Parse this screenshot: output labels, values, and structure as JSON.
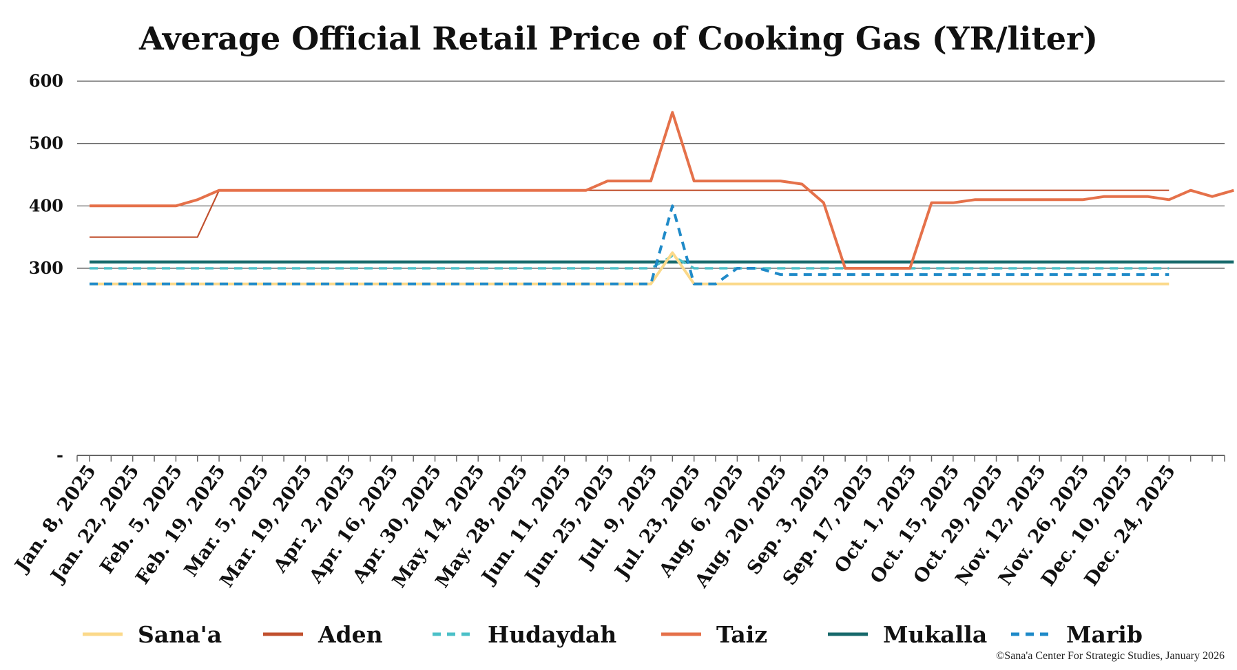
{
  "chart_data": {
    "type": "line",
    "title": "Average Official Retail Price of Cooking Gas (YR/liter)",
    "ylim": [
      0,
      600
    ],
    "y_ticks": [
      {
        "value": 600,
        "label": "600"
      },
      {
        "value": 500,
        "label": "500"
      },
      {
        "value": 400,
        "label": "400"
      },
      {
        "value": 300,
        "label": "300"
      },
      {
        "value": 0,
        "label": "-"
      }
    ],
    "grid": "horizontal",
    "legend_position": "bottom",
    "x_tick_labels": [
      "Jan. 8, 2025",
      "Jan. 22, 2025",
      "Feb. 5, 2025",
      "Feb. 19, 2025",
      "Mar. 5, 2025",
      "Mar. 19, 2025",
      "Apr. 2, 2025",
      "Apr. 16, 2025",
      "Apr. 30, 2025",
      "May. 14, 2025",
      "May. 28, 2025",
      "Jun. 11, 2025",
      "Jun. 25, 2025",
      "Jul. 9, 2025",
      "Jul. 23, 2025",
      "Aug. 6, 2025",
      "Aug. 20, 2025",
      "Sep. 3, 2025",
      "Sep. 17, 2025",
      "Oct. 1, 2025",
      "Oct. 15, 2025",
      "Oct. 29, 2025",
      "Nov. 12, 2025",
      "Nov. 26, 2025",
      "Dec. 10, 2025",
      "Dec. 24, 2025"
    ],
    "series": [
      {
        "name": "Sana'a",
        "color": "#FBD98A",
        "dashed": false,
        "values": [
          275,
          275,
          275,
          275,
          275,
          275,
          275,
          275,
          275,
          275,
          275,
          275,
          275,
          275,
          275,
          275,
          275,
          275,
          275,
          275,
          275,
          275,
          275,
          275,
          275,
          275,
          275,
          325,
          275,
          275,
          275,
          275,
          275,
          275,
          275,
          275,
          275,
          275,
          275,
          275,
          275,
          275,
          275,
          275,
          275,
          275,
          275,
          275,
          275,
          275,
          275
        ]
      },
      {
        "name": "Aden",
        "color": "#C1502E",
        "dashed": false,
        "values": [
          350,
          350,
          350,
          350,
          350,
          350,
          425,
          425,
          425,
          425,
          425,
          425,
          425,
          425,
          425,
          425,
          425,
          425,
          425,
          425,
          425,
          425,
          425,
          425,
          425,
          425,
          425,
          425,
          425,
          425,
          425,
          425,
          425,
          425,
          425,
          425,
          425,
          425,
          425,
          425,
          425,
          425,
          425,
          425,
          425,
          425,
          425,
          425,
          425,
          425,
          425
        ]
      },
      {
        "name": "Hudaydah",
        "color": "#4BC0C8",
        "dashed": true,
        "values": [
          300,
          300,
          300,
          300,
          300,
          300,
          300,
          300,
          300,
          300,
          300,
          300,
          300,
          300,
          300,
          300,
          300,
          300,
          300,
          300,
          300,
          300,
          300,
          300,
          300,
          300,
          300,
          320,
          300,
          300,
          300,
          300,
          300,
          300,
          300,
          300,
          300,
          300,
          300,
          300,
          300,
          300,
          300,
          300,
          300,
          300,
          300,
          300,
          300,
          300,
          300
        ]
      },
      {
        "name": "Taiz",
        "color": "#E5714A",
        "dashed": false,
        "values": [
          400,
          400,
          400,
          400,
          400,
          410,
          425,
          425,
          425,
          425,
          425,
          425,
          425,
          425,
          425,
          425,
          425,
          425,
          425,
          425,
          425,
          425,
          425,
          425,
          440,
          440,
          440,
          550,
          440,
          440,
          440,
          440,
          440,
          435,
          405,
          300,
          300,
          300,
          300,
          405,
          405,
          410,
          410,
          410,
          410,
          410,
          410,
          415,
          415,
          415,
          410,
          425,
          415,
          425
        ]
      },
      {
        "name": "Mukalla",
        "color": "#17696B",
        "dashed": false,
        "values": [
          310,
          310,
          310,
          310,
          310,
          310,
          310,
          310,
          310,
          310,
          310,
          310,
          310,
          310,
          310,
          310,
          310,
          310,
          310,
          310,
          310,
          310,
          310,
          310,
          310,
          310,
          310,
          310,
          310,
          310,
          310,
          310,
          310,
          310,
          310,
          310,
          310,
          310,
          310,
          310,
          310,
          310,
          310,
          310,
          310,
          310,
          310,
          310,
          310,
          310,
          310,
          310,
          310,
          310
        ]
      },
      {
        "name": "Marib",
        "color": "#1F8AC8",
        "dashed": true,
        "values": [
          275,
          275,
          275,
          275,
          275,
          275,
          275,
          275,
          275,
          275,
          275,
          275,
          275,
          275,
          275,
          275,
          275,
          275,
          275,
          275,
          275,
          275,
          275,
          275,
          275,
          275,
          275,
          400,
          275,
          275,
          300,
          300,
          290,
          290,
          290,
          290,
          290,
          290,
          290,
          290,
          290,
          290,
          290,
          290,
          290,
          290,
          290,
          290,
          290,
          290,
          290
        ]
      }
    ]
  },
  "source_note": "©Sana'a Center For Strategic Studies, January 2026"
}
